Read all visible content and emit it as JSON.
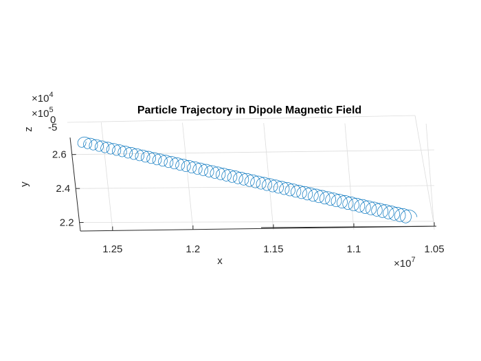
{
  "chart_data": {
    "type": "line",
    "title": "Particle Trajectory in Dipole Magnetic Field",
    "xlabel": "x",
    "ylabel": "y",
    "zlabel": "z",
    "x_multiplier": "×10",
    "x_exponent": "7",
    "y_multiplier": "×10",
    "y_exponent": "5",
    "z_multiplier": "×10",
    "z_exponent": "4",
    "x_ticks": [
      "1.25",
      "1.2",
      "1.15",
      "1.1",
      "1.05"
    ],
    "y_ticks": [
      "2.6",
      "2.4",
      "2.2"
    ],
    "z_ticks": [
      "0",
      "-5"
    ],
    "x_tick_values": [
      1.25,
      1.2,
      1.15,
      1.1,
      1.05
    ],
    "y_tick_values": [
      2.6,
      2.4,
      2.2
    ],
    "xlim": [
      1.05,
      1.27
    ],
    "ylim": [
      2.15,
      2.7
    ],
    "x_reversed": true,
    "grid": true,
    "line_color": "#0072bd",
    "trajectory": {
      "x_start": 1.27,
      "y_start": 2.62,
      "x_end": 1.065,
      "y_end": 2.22,
      "loops": 57
    }
  }
}
